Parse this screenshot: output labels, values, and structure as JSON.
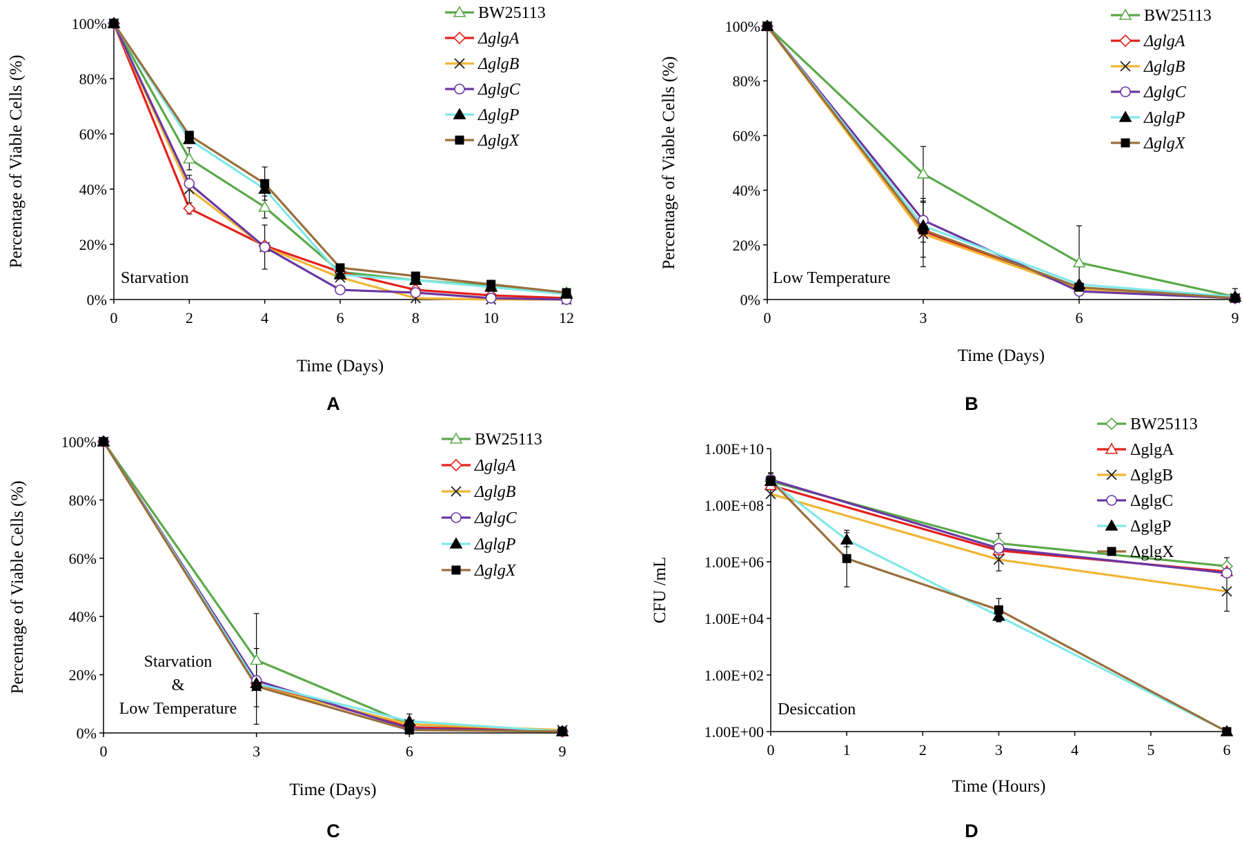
{
  "colors": {
    "BW25113": "#5aa94a",
    "glgA": "#e3201b",
    "glgB": "#f0b533",
    "glgC": "#6a37a3",
    "glgP": "#7fe8e8",
    "glgX": "#996f3c"
  },
  "chart_data": [
    {
      "panel": "A",
      "type": "line",
      "title": "",
      "annotation": [
        "Starvation"
      ],
      "xlabel": "Time (Days)",
      "ylabel": "Percentage  of Viable  Cells (%)",
      "x": [
        0,
        2,
        4,
        6,
        8,
        10,
        12
      ],
      "xticks": [
        0,
        2,
        4,
        6,
        8,
        10,
        12
      ],
      "xtick_labels": [
        "0",
        "2",
        "4",
        "6",
        "8",
        "10",
        "12"
      ],
      "xlim": [
        0,
        12
      ],
      "ylim": [
        0,
        100
      ],
      "yscale": "linear",
      "yticks": [
        0,
        20,
        40,
        60,
        80,
        100
      ],
      "ytick_labels": [
        "0%",
        "20%",
        "40%",
        "60%",
        "80%",
        "100%"
      ],
      "legend_italic": true,
      "legend_position": "top-right",
      "series": [
        {
          "name": "BW25113",
          "key": "BW25113",
          "marker": "triangle-open",
          "values": [
            100,
            51,
            33.5,
            10,
            7,
            5,
            2.5
          ],
          "errors": [
            0,
            4,
            4,
            0,
            0,
            0,
            0
          ]
        },
        {
          "name": "ΔglgA",
          "key": "glgA",
          "marker": "diamond-open",
          "values": [
            100,
            33,
            19.5,
            10,
            3.5,
            1.5,
            0.5
          ],
          "errors": [
            0,
            2,
            0,
            0,
            0,
            0,
            0
          ]
        },
        {
          "name": "ΔglgB",
          "key": "glgB",
          "marker": "x",
          "values": [
            100,
            40,
            19,
            8,
            0.5,
            0,
            0
          ],
          "errors": [
            0,
            5,
            8,
            0,
            0,
            0,
            0
          ]
        },
        {
          "name": "ΔglgC",
          "key": "glgC",
          "marker": "circle-open",
          "values": [
            100,
            42,
            19,
            3.5,
            2.5,
            0.5,
            0
          ],
          "errors": [
            0,
            0,
            0,
            0,
            0,
            0,
            0
          ]
        },
        {
          "name": "ΔglgP",
          "key": "glgP",
          "marker": "triangle-filled",
          "values": [
            100,
            58,
            40,
            9,
            7,
            4.5,
            2
          ],
          "errors": [
            0,
            0,
            0,
            0,
            0,
            0,
            0
          ]
        },
        {
          "name": "ΔglgX",
          "key": "glgX",
          "marker": "square-filled",
          "values": [
            100,
            59.5,
            42,
            11.5,
            8.5,
            5.5,
            2.5
          ],
          "errors": [
            0,
            0,
            6,
            0,
            0,
            0,
            0
          ]
        }
      ]
    },
    {
      "panel": "B",
      "type": "line",
      "title": "",
      "annotation": [
        "Low Temperature"
      ],
      "xlabel": "Time (Days)",
      "ylabel": "Percentage of Viable Cells (%)",
      "x": [
        0,
        3,
        6,
        9
      ],
      "xticks": [
        0,
        3,
        6,
        9
      ],
      "xtick_labels": [
        "0",
        "3",
        "6",
        "9"
      ],
      "xlim": [
        0,
        9
      ],
      "ylim": [
        0,
        100
      ],
      "yscale": "linear",
      "yticks": [
        0,
        20,
        40,
        60,
        80,
        100
      ],
      "ytick_labels": [
        "0%",
        "20%",
        "40%",
        "60%",
        "80%",
        "100%"
      ],
      "legend_italic": true,
      "legend_position": "top-right",
      "series": [
        {
          "name": "BW25113",
          "key": "BW25113",
          "marker": "triangle-open",
          "values": [
            100,
            46,
            13.5,
            1
          ],
          "errors": [
            0,
            10,
            13.5,
            0
          ]
        },
        {
          "name": "ΔglgA",
          "key": "glgA",
          "marker": "diamond-open",
          "values": [
            100,
            25,
            4,
            0.5
          ],
          "errors": [
            0,
            0,
            0,
            0
          ]
        },
        {
          "name": "ΔglgB",
          "key": "glgB",
          "marker": "x",
          "values": [
            100,
            24,
            4,
            0.5
          ],
          "errors": [
            0,
            12,
            2,
            0
          ]
        },
        {
          "name": "ΔglgC",
          "key": "glgC",
          "marker": "circle-open",
          "values": [
            100,
            29,
            3,
            0.5
          ],
          "errors": [
            0,
            8,
            0,
            0
          ]
        },
        {
          "name": "ΔglgP",
          "key": "glgP",
          "marker": "triangle-filled",
          "values": [
            100,
            27,
            5.5,
            1
          ],
          "errors": [
            0,
            0,
            0,
            3
          ]
        },
        {
          "name": "ΔglgX",
          "key": "glgX",
          "marker": "square-filled",
          "values": [
            100,
            25.5,
            4.5,
            0.5
          ],
          "errors": [
            0,
            10,
            0,
            0
          ]
        }
      ]
    },
    {
      "panel": "C",
      "type": "line",
      "title": "",
      "annotation": [
        "Starvation",
        "&",
        "Low Temperature"
      ],
      "xlabel": "Time (Days)",
      "ylabel": "Percentage of Viable Cells (%)",
      "x": [
        0,
        3,
        6,
        9
      ],
      "xticks": [
        0,
        3,
        6,
        9
      ],
      "xtick_labels": [
        "0",
        "3",
        "6",
        "9"
      ],
      "xlim": [
        0,
        9
      ],
      "ylim": [
        0,
        100
      ],
      "yscale": "linear",
      "yticks": [
        0,
        20,
        40,
        60,
        80,
        100
      ],
      "ytick_labels": [
        "0%",
        "20%",
        "40%",
        "60%",
        "80%",
        "100%"
      ],
      "legend_italic": true,
      "legend_position": "top-right",
      "series": [
        {
          "name": "BW25113",
          "key": "BW25113",
          "marker": "triangle-open",
          "values": [
            100,
            25,
            3,
            0.5
          ],
          "errors": [
            0,
            16,
            0,
            0
          ]
        },
        {
          "name": "ΔglgA",
          "key": "glgA",
          "marker": "diamond-open",
          "values": [
            100,
            17,
            2,
            0.5
          ],
          "errors": [
            0,
            0,
            0,
            0
          ]
        },
        {
          "name": "ΔglgB",
          "key": "glgB",
          "marker": "x",
          "values": [
            100,
            16,
            3,
            1
          ],
          "errors": [
            0,
            0,
            0,
            0
          ]
        },
        {
          "name": "ΔglgC",
          "key": "glgC",
          "marker": "circle-open",
          "values": [
            100,
            18,
            1.5,
            0.5
          ],
          "errors": [
            0,
            0,
            0,
            0
          ]
        },
        {
          "name": "ΔglgP",
          "key": "glgP",
          "marker": "triangle-filled",
          "values": [
            100,
            17,
            4,
            0.5
          ],
          "errors": [
            0,
            0,
            2.5,
            0
          ]
        },
        {
          "name": "ΔglgX",
          "key": "glgX",
          "marker": "square-filled",
          "values": [
            100,
            16,
            1,
            0.5
          ],
          "errors": [
            0,
            13,
            0,
            0
          ]
        }
      ]
    },
    {
      "panel": "D",
      "type": "line",
      "title": "",
      "annotation": [
        "Desiccation"
      ],
      "xlabel": "Time (Hours)",
      "ylabel": "CFU /mL",
      "x_by_series": true,
      "xticks": [
        0,
        1,
        2,
        3,
        4,
        5,
        6
      ],
      "xtick_labels": [
        "0",
        "1",
        "2",
        "3",
        "4",
        "5",
        "6"
      ],
      "xlim": [
        0,
        6
      ],
      "ylim": [
        1,
        10000000000
      ],
      "yscale": "log",
      "yticks": [
        1,
        100,
        10000,
        1000000,
        100000000,
        10000000000
      ],
      "ytick_labels": [
        "1.00E+00",
        "1.00E+02",
        "1.00E+04",
        "1.00E+06",
        "1.00E+08",
        "1.00E+10"
      ],
      "legend_italic": false,
      "legend_position": "top-right",
      "series": [
        {
          "name": "BW25113",
          "key": "BW25113",
          "marker": "diamond-open",
          "x": [
            0,
            3,
            6
          ],
          "values": [
            700000000,
            4500000,
            700000
          ],
          "errors_log": [
            0.3,
            0.35,
            0.3
          ]
        },
        {
          "name": "ΔglgA",
          "key": "glgA",
          "marker": "triangle-open",
          "x": [
            0,
            3,
            6
          ],
          "values": [
            500000000,
            2500000,
            450000
          ],
          "errors_log": [
            0,
            0,
            0
          ]
        },
        {
          "name": "ΔglgB",
          "key": "glgB",
          "marker": "x",
          "x": [
            0,
            3,
            6
          ],
          "values": [
            250000000,
            1200000,
            90000
          ],
          "errors_log": [
            0,
            0.4,
            0.7
          ]
        },
        {
          "name": "ΔglgC",
          "key": "glgC",
          "marker": "circle-open",
          "x": [
            0,
            3,
            6
          ],
          "values": [
            800000000,
            3000000,
            400000
          ],
          "errors_log": [
            0,
            0,
            0
          ]
        },
        {
          "name": "ΔglgP",
          "key": "glgP",
          "marker": "triangle-filled",
          "x": [
            0,
            1,
            3,
            6
          ],
          "values": [
            700000000,
            6000000,
            12000,
            1
          ],
          "errors_log": [
            0,
            0.25,
            0.2,
            0
          ]
        },
        {
          "name": "ΔglgX",
          "key": "glgX",
          "marker": "square-filled",
          "x": [
            0,
            1,
            3,
            6
          ],
          "values": [
            750000000,
            1300000,
            20000,
            1
          ],
          "errors_log": [
            0.25,
            1.0,
            0.4,
            0
          ]
        }
      ]
    }
  ]
}
